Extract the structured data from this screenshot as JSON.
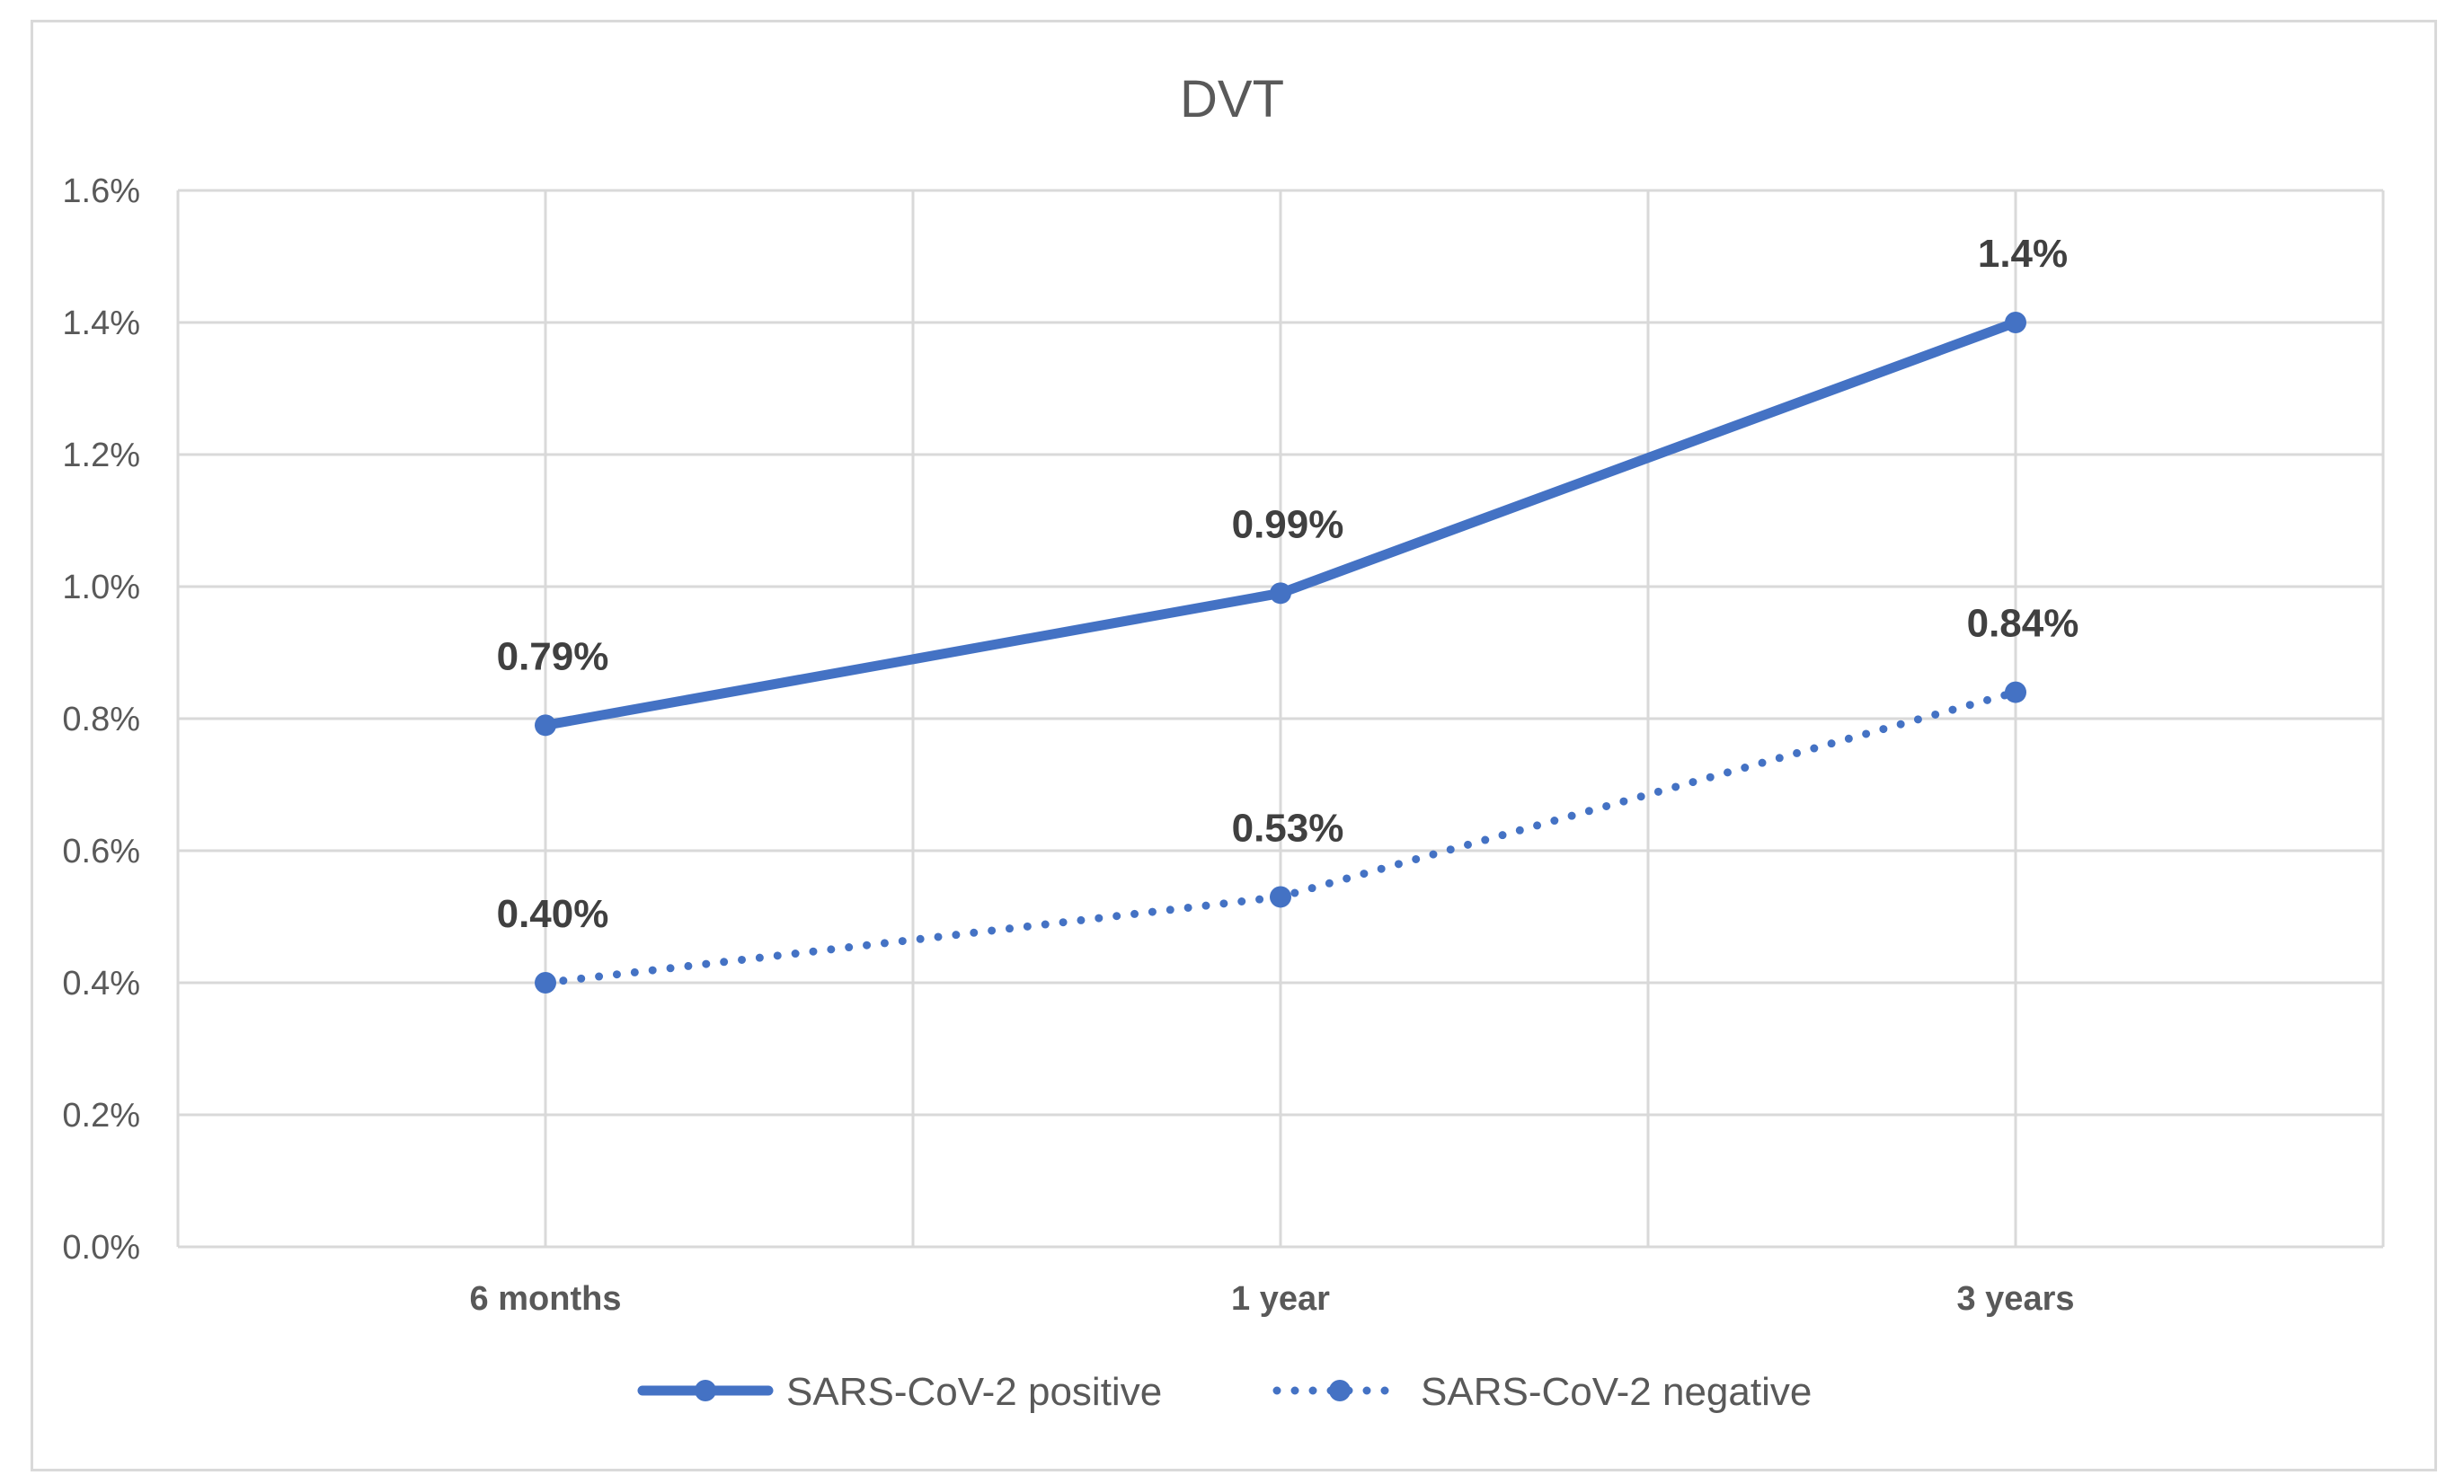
{
  "chart_data": {
    "type": "line",
    "title": "DVT",
    "categories": [
      "6 months",
      "1 year",
      "3 years"
    ],
    "ylim": [
      0,
      0.016
    ],
    "yticks": [
      0,
      0.002,
      0.004,
      0.006,
      0.008,
      0.01,
      0.012,
      0.014,
      0.016
    ],
    "ytick_labels": [
      "0.0%",
      "0.2%",
      "0.4%",
      "0.6%",
      "0.8%",
      "1.0%",
      "1.2%",
      "1.4%",
      "1.6%"
    ],
    "grid": true,
    "legend": "bottom",
    "series": [
      {
        "name": "SARS-CoV-2 positive",
        "style": "solid",
        "color": "#4472C4",
        "values": [
          0.0079,
          0.0099,
          0.014
        ],
        "labels": [
          "0.79%",
          "0.99%",
          "1.4%"
        ]
      },
      {
        "name": "SARS-CoV-2 negative",
        "style": "dotted",
        "color": "#4472C4",
        "values": [
          0.004,
          0.0053,
          0.0084
        ],
        "labels": [
          "0.40%",
          "0.53%",
          "0.84%"
        ]
      }
    ]
  }
}
